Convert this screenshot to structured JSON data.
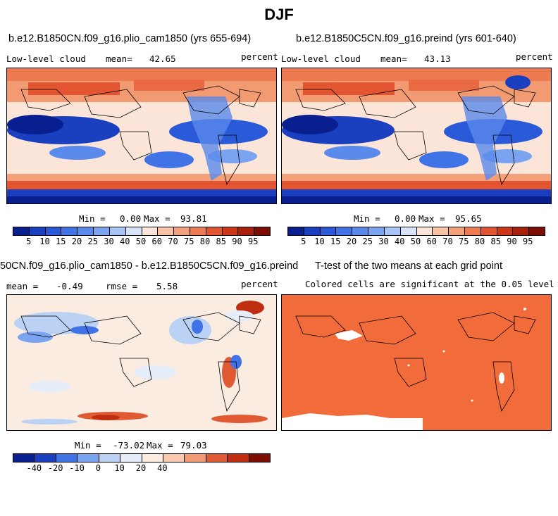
{
  "figure": {
    "title": "DJF"
  },
  "panel_a": {
    "title": "b.e12.B1850CN.f09_g16.plio_cam1850 (yrs 655-694)",
    "field": "Low-level cloud",
    "mean_label": "mean=",
    "mean": "42.65",
    "units": "percent",
    "min_label": "Min =",
    "min": "0.00",
    "max_label": "Max =",
    "max": "93.81"
  },
  "panel_b": {
    "title": "b.e12.B1850C5CN.f09_g16.preind (yrs 601-640)",
    "field": "Low-level cloud",
    "mean_label": "mean=",
    "mean": "43.13",
    "units": "percent",
    "min_label": "Min =",
    "min": "0.00",
    "max_label": "Max =",
    "max": "95.65"
  },
  "panel_c": {
    "title": "50CN.f09_g16.plio_cam1850 - b.e12.B1850C5CN.f09_g16.preind",
    "mean_label": "mean =",
    "mean": "-0.49",
    "rmse_label": "rmse =",
    "rmse": "5.58",
    "units": "percent",
    "min_label": "Min =",
    "min": "-73.02",
    "max_label": "Max =",
    "max": "79.03"
  },
  "panel_d": {
    "title": "T-test of the two means at each grid point",
    "subtitle": "Colored cells are significant at the 0.05 level"
  },
  "colorbar_abs": {
    "ticks": [
      "5",
      "10",
      "15",
      "20",
      "25",
      "30",
      "40",
      "50",
      "60",
      "70",
      "75",
      "80",
      "85",
      "90",
      "95"
    ],
    "colors": [
      "#0a1f8f",
      "#1a3fbf",
      "#2a5ad8",
      "#3f73e6",
      "#5a8aeb",
      "#7aa3f0",
      "#a8c3f5",
      "#d6e3f8",
      "#fbe5d8",
      "#f8c2a5",
      "#f4a07a",
      "#ee7a52",
      "#e35530",
      "#cc3718",
      "#a81f0c",
      "#7c0e04"
    ]
  },
  "colorbar_diff": {
    "ticks": [
      "-40",
      "-20",
      "-10",
      "0",
      "10",
      "20",
      "40"
    ],
    "colors": [
      "#0a1f8f",
      "#1a3fbf",
      "#3f73e6",
      "#7aa3f0",
      "#bcd2f5",
      "#e5edf9",
      "#fbece2",
      "#f8c9ae",
      "#f19a74",
      "#e05a34",
      "#c02e12",
      "#7c0e04"
    ]
  },
  "significance_color": "#f26b3a"
}
